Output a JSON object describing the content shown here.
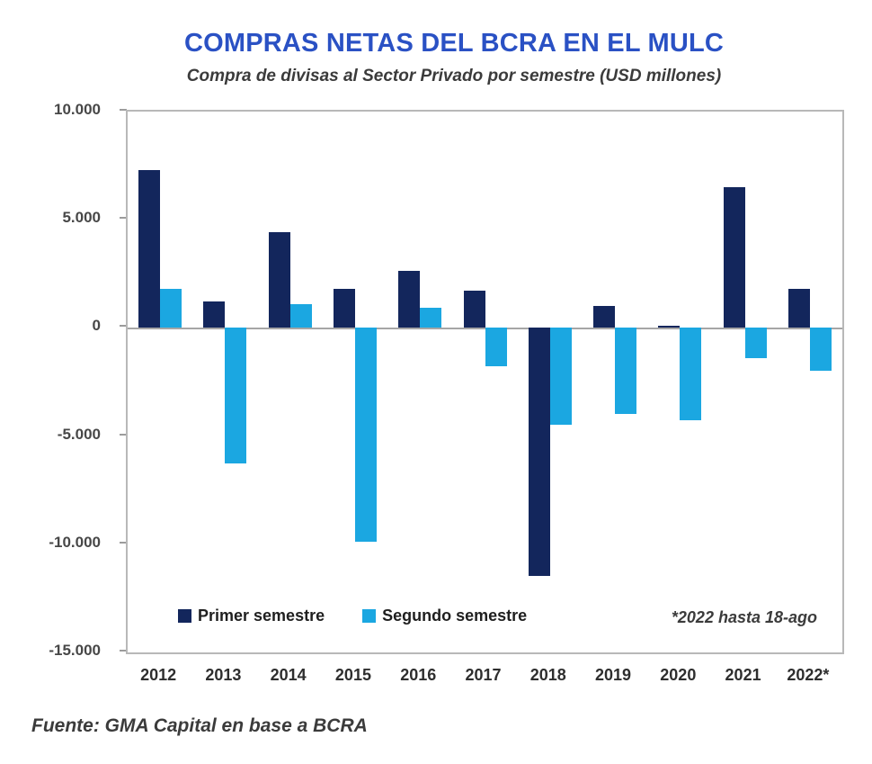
{
  "page": {
    "title": "COMPRAS NETAS DEL BCRA EN EL MULC",
    "subtitle": "Compra de divisas al Sector Privado por semestre (USD millones)",
    "annotation": "*2022 hasta 18-ago",
    "source": "Fuente: GMA Capital en base a BCRA"
  },
  "colors": {
    "title_blue": "#2A51C4",
    "primer_semestre": "#13265C",
    "segundo_semestre": "#1BA7E1",
    "zero_line": "#A6A6A6",
    "plot_border": "#B8B8B8",
    "axis_text": "#474747"
  },
  "chart_data": {
    "type": "bar",
    "title": "COMPRAS NETAS DEL BCRA EN EL MULC",
    "subtitle": "Compra de divisas al Sector Privado por semestre (USD millones)",
    "categories": [
      "2012",
      "2013",
      "2014",
      "2015",
      "2016",
      "2017",
      "2018",
      "2019",
      "2020",
      "2021",
      "2022*"
    ],
    "series": [
      {
        "name": "Primer semestre",
        "color": "#13265C",
        "values": [
          7300,
          1200,
          4400,
          1800,
          2600,
          1700,
          -11500,
          1000,
          100,
          6500,
          1800
        ]
      },
      {
        "name": "Segundo semestre",
        "color": "#1BA7E1",
        "values": [
          1800,
          -6300,
          1100,
          -9900,
          900,
          -1800,
          -4500,
          -4000,
          -4300,
          -1400,
          -2000
        ]
      }
    ],
    "ylabel": "",
    "xlabel": "",
    "ylim": [
      -15000,
      10000
    ],
    "y_tick_values": [
      10000,
      5000,
      0,
      -5000,
      -10000,
      -15000
    ],
    "y_tick_labels": [
      "10.000",
      "5.000",
      "0",
      "-5.000",
      "-10.000",
      "-15.000"
    ],
    "grid": false,
    "legend_position": "bottom-inside",
    "annotation": "*2022 hasta 18-ago"
  }
}
